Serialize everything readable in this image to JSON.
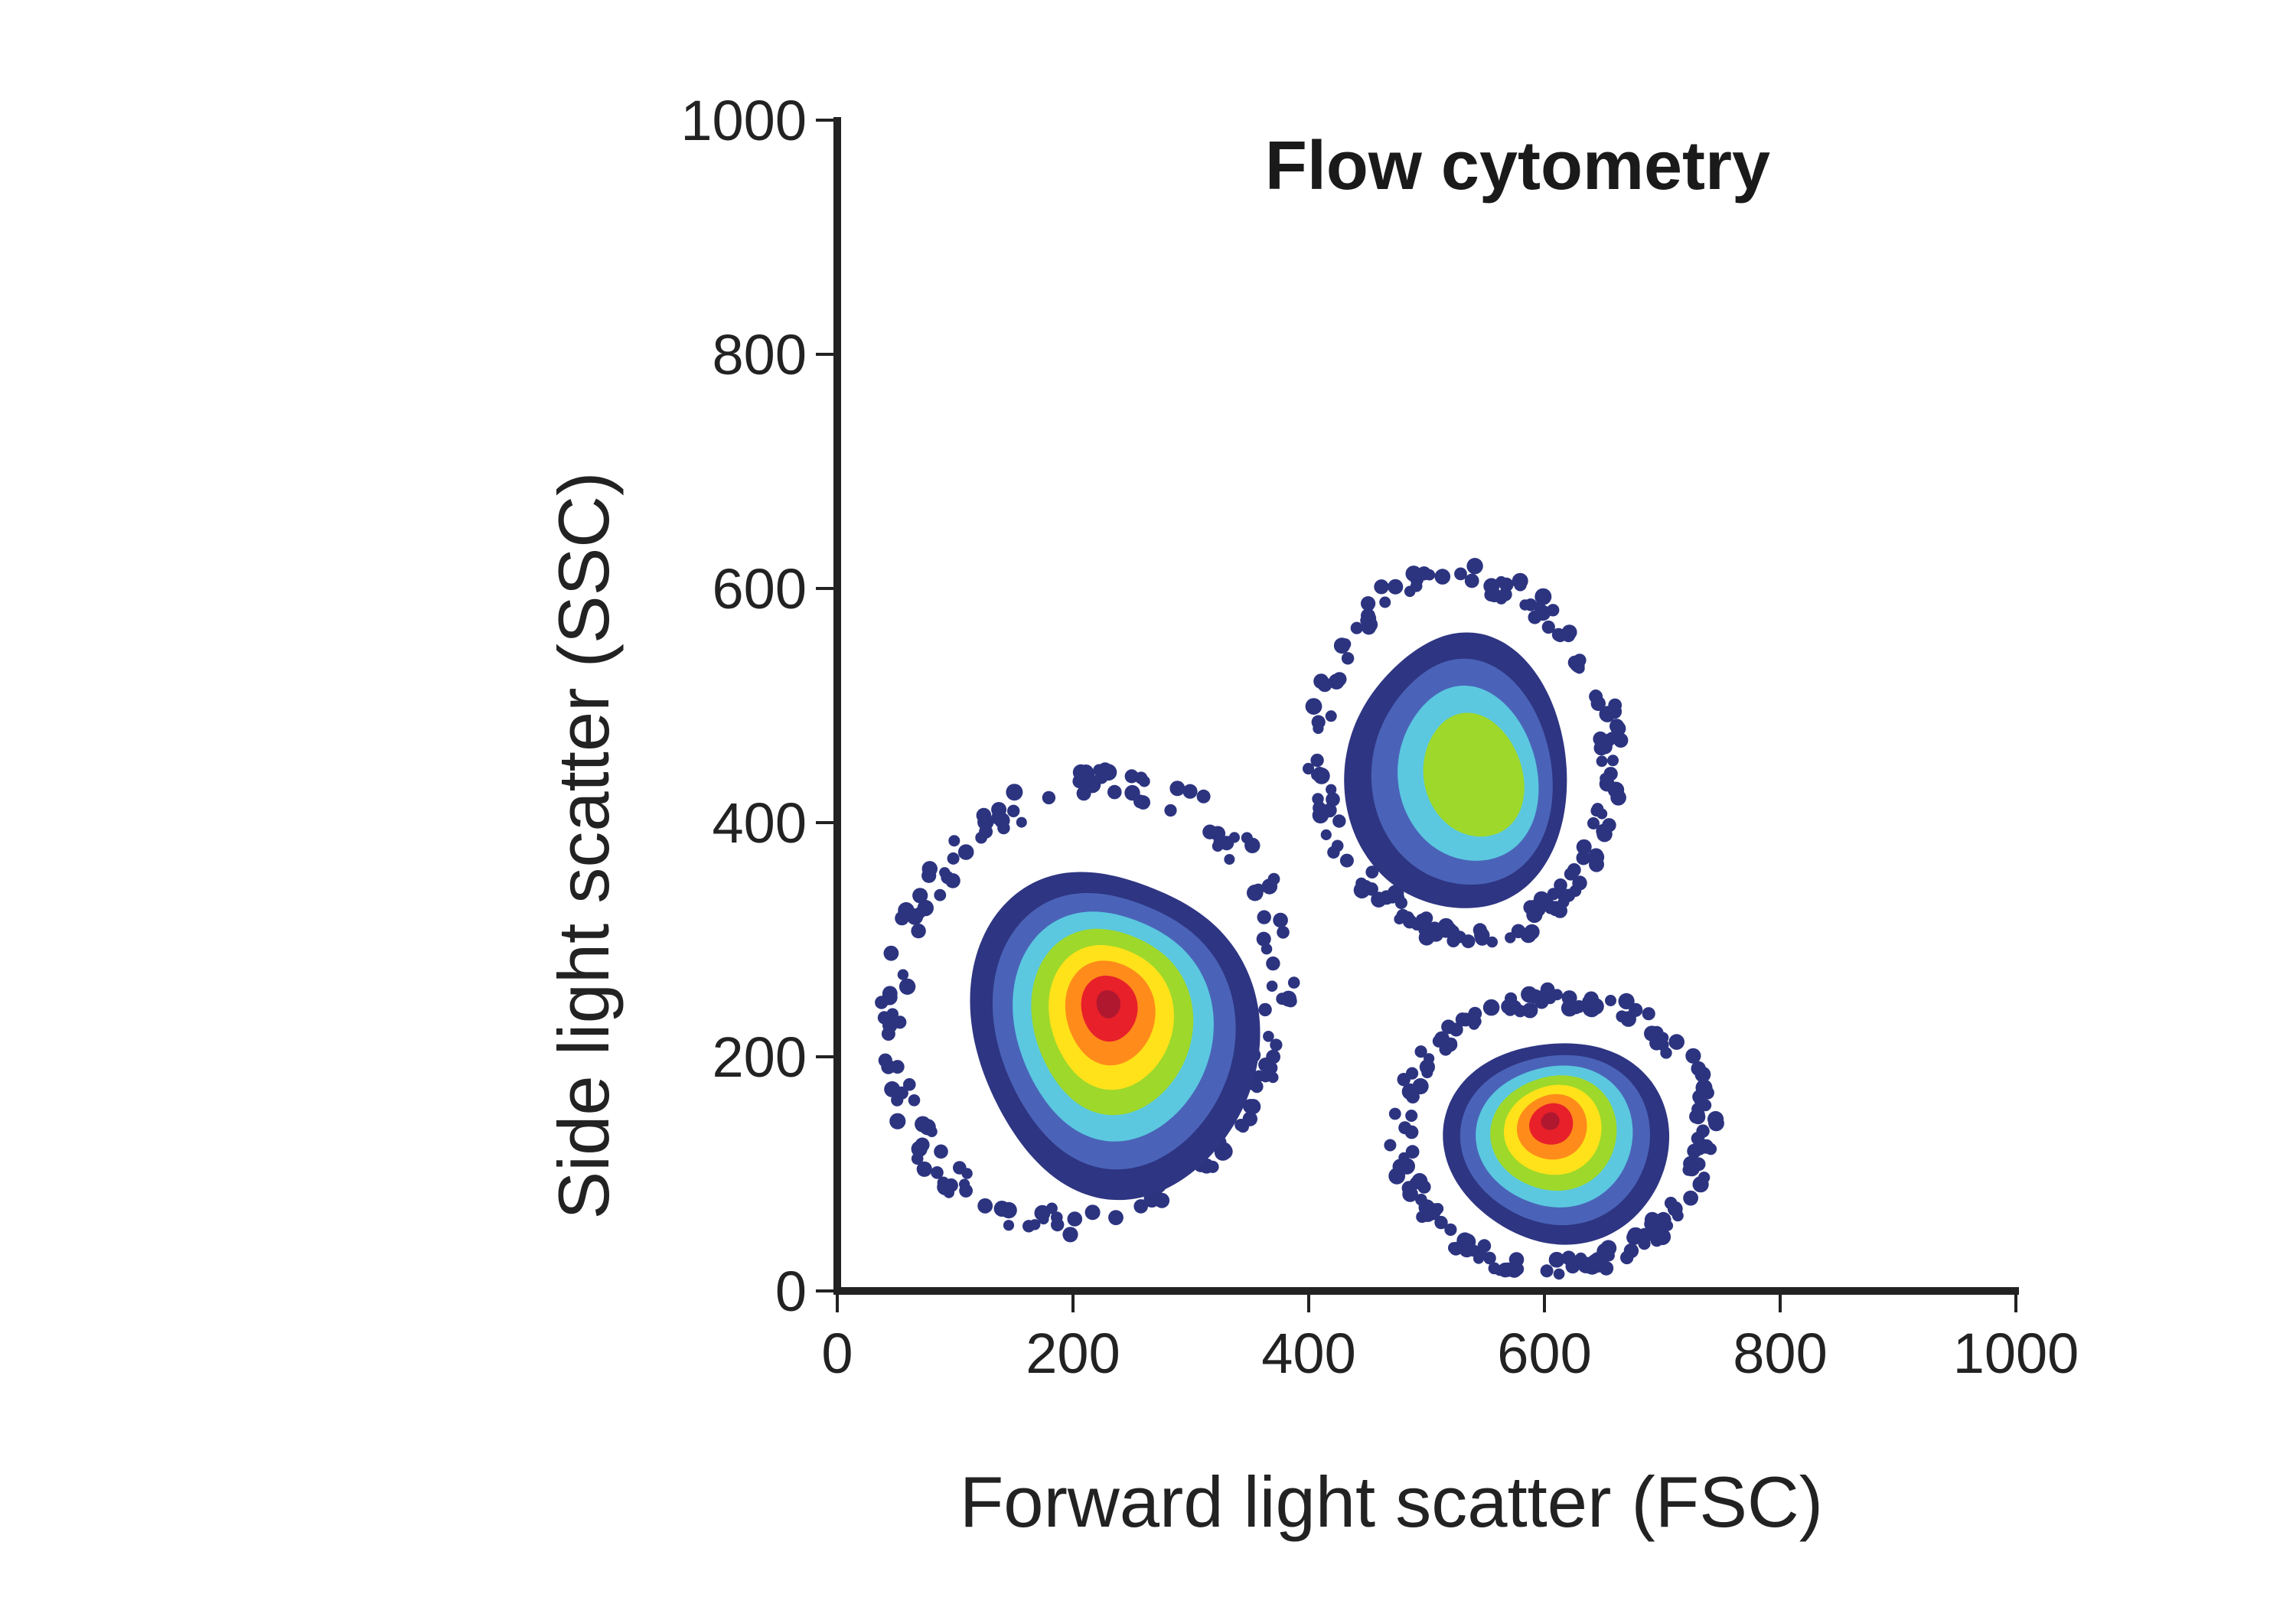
{
  "chart_data": {
    "type": "scatter",
    "subtype": "density-contour",
    "title": "Flow cytometry",
    "xlabel": "Forward light scatter (FSC)",
    "ylabel": "Side light scatter (SSC)",
    "xlim": [
      0,
      1000
    ],
    "ylim": [
      0,
      1000
    ],
    "xticks": [
      "0",
      "200",
      "400",
      "600",
      "800",
      "1000"
    ],
    "yticks": [
      "0",
      "200",
      "400",
      "600",
      "800",
      "1000"
    ],
    "grid": false,
    "legend": "none",
    "colors": {
      "outer_dots": "#2c3480",
      "level_1": "#2e3582",
      "level_2": "#4a63b8",
      "level_3": "#5bc8e0",
      "level_4": "#9ed82a",
      "level_5": "#ffe21a",
      "level_6": "#ff8c1a",
      "level_7": "#e8202a",
      "level_8": "#b01830"
    },
    "populations": [
      {
        "center": [
          230,
          245
        ],
        "x_range": [
          40,
          380
        ],
        "y_range": [
          40,
          455
        ],
        "peak_level": 8
      },
      {
        "center": [
          540,
          440
        ],
        "x_range": [
          405,
          660
        ],
        "y_range": [
          285,
          630
        ],
        "peak_level": 4
      },
      {
        "center": [
          605,
          145
        ],
        "x_range": [
          475,
          740
        ],
        "y_range": [
          5,
          265
        ],
        "peak_level": 8
      }
    ]
  }
}
